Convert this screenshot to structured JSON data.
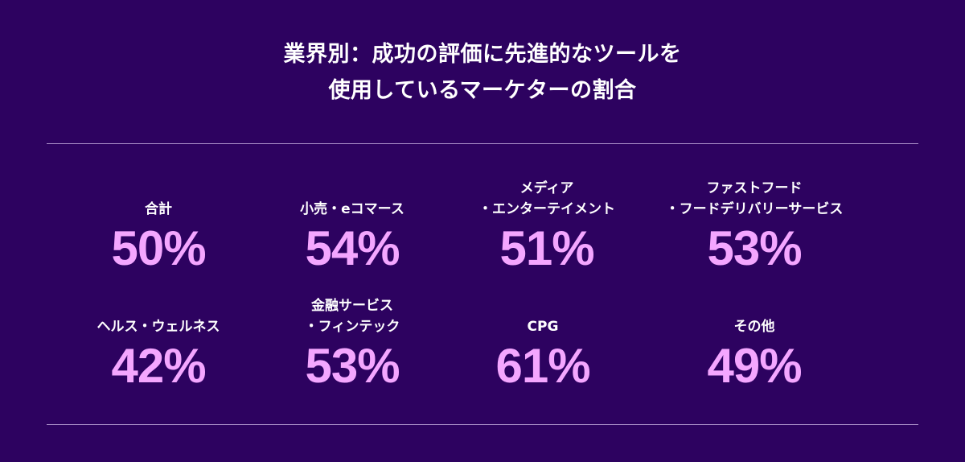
{
  "title": {
    "line1": "業界別：成功の評価に先進的なツールを",
    "line2": "使用しているマーケターの割合"
  },
  "stats": [
    {
      "label_line1": "",
      "label_line2": "合計",
      "value": "50%"
    },
    {
      "label_line1": "",
      "label_line2": "小売・eコマース",
      "value": "54%"
    },
    {
      "label_line1": "メディア",
      "label_line2": "・エンターテイメント",
      "value": "51%"
    },
    {
      "label_line1": "ファストフード",
      "label_line2": "・フードデリバリーサービス",
      "value": "53%"
    },
    {
      "label_line1": "",
      "label_line2": "ヘルス・ウェルネス",
      "value": "42%"
    },
    {
      "label_line1": "金融サービス",
      "label_line2": "・フィンテック",
      "value": "53%"
    },
    {
      "label_line1": "",
      "label_line2": "CPG",
      "value": "61%"
    },
    {
      "label_line1": "",
      "label_line2": "その他",
      "value": "49%"
    }
  ],
  "colors": {
    "background": "#2d0260",
    "value": "#f4a6ff",
    "label": "#ffffff",
    "divider": "#a98fc8"
  }
}
